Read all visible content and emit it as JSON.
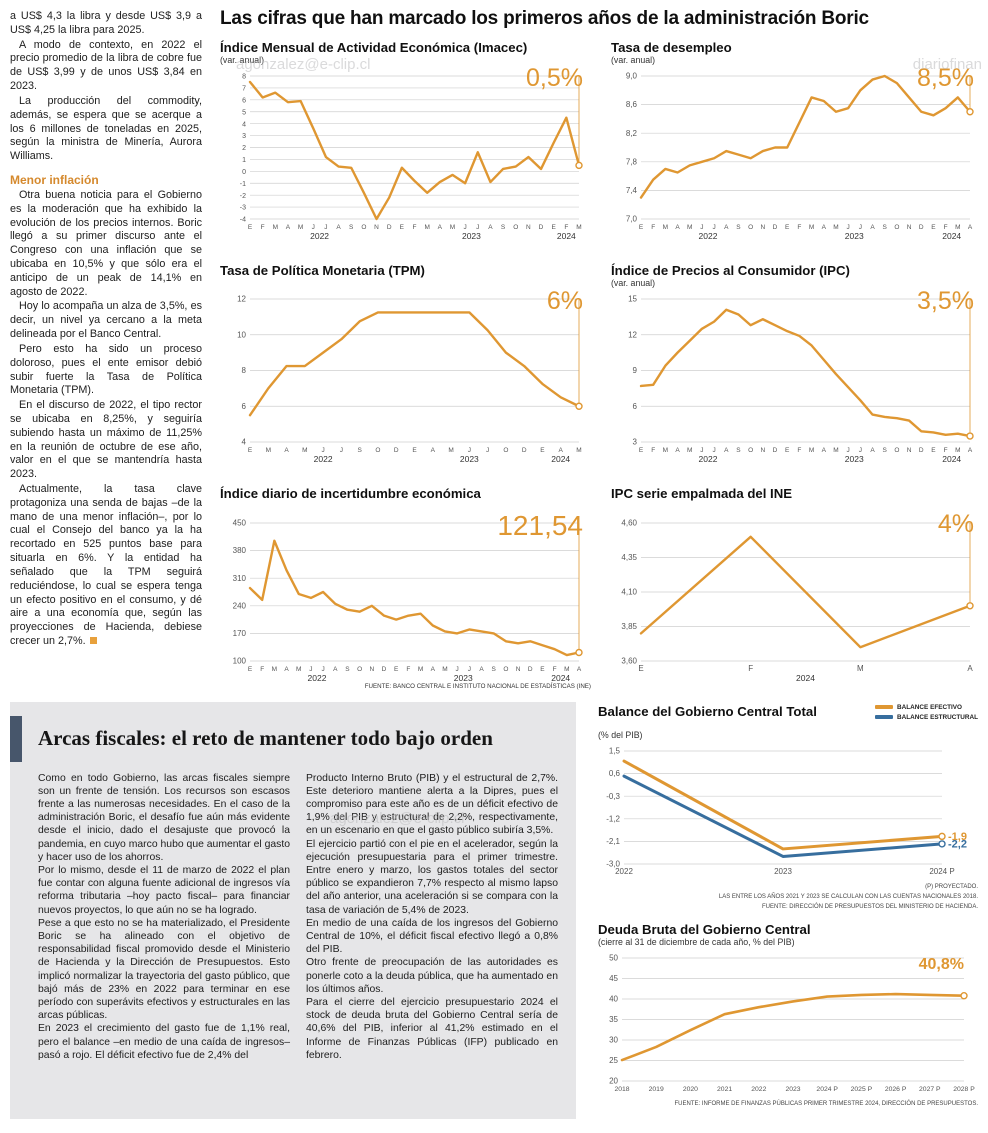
{
  "main_title": "Las cifras que han marcado los primeros años de la administración Boric",
  "watermarks": [
    "agonzalez@e-clip.cl",
    "diariofinan",
    "agonzalez@e-clip.cl"
  ],
  "colors": {
    "orange": "#DF9732",
    "blue": "#376E9E",
    "heading_orange": "#D5892D",
    "gray_box": "#E6E6E8",
    "headline_bar": "#47566B"
  },
  "left_col": {
    "p1": "a US$ 4,3 la libra y desde US$ 3,9 a US$ 4,25 la libra para 2025.",
    "p2": "A modo de contexto, en 2022 el precio promedio de la libra de cobre fue de US$ 3,99 y de unos US$ 3,84 en 2023.",
    "p3": "La producción del commodity, además, se espera que se acerque a los 6 millones de toneladas en 2025, según la ministra de Minería, Aurora Williams.",
    "heading": "Menor inflación",
    "p4": "Otra buena noticia para el Gobierno es la moderación que ha exhibido la evolución de los precios internos. Boric llegó a su primer discurso ante el Congreso con una inflación que se ubicaba en 10,5% y que sólo era el anticipo de un peak de 14,1% en agosto de 2022.",
    "p5": "Hoy lo acompaña un alza de 3,5%, es decir, un nivel ya cercano a la meta delineada por el Banco Central.",
    "p6": "Pero esto ha sido un proceso doloroso, pues el ente emisor debió subir fuerte la Tasa de Política Monetaria (TPM).",
    "p7": "En el discurso de 2022, el tipo rector se ubicaba en 8,25%, y seguiría subiendo hasta un máximo de 11,25% en la reunión de octubre de ese año, valor en el que se mantendría hasta 2023.",
    "p8": "Actualmente, la tasa clave protagoniza una senda de bajas –de la mano de una menor inflación–, por lo cual el Consejo del banco ya la ha recortado en 525 puntos base para situarla en 6%. Y la entidad ha señalado que la TPM seguirá reduciéndose, lo cual se espera tenga un efecto positivo en el consumo, y dé aire a una economía que, según las proyecciones de Hacienda, debiese crecer un 2,7%."
  },
  "bottom": {
    "headline": "Arcas fiscales: el reto de mantener todo bajo orden",
    "col1": {
      "p1": "Como en todo Gobierno, las arcas fiscales siempre son un frente de tensión. Los recursos son escasos frente a las numerosas necesidades. En el caso de la administración Boric, el desafío fue aún más evidente desde el inicio, dado el desajuste que provocó la pandemia, en cuyo marco hubo que aumentar el gasto y hacer uso de los ahorros.",
      "p2": "Por lo mismo, desde el 11 de marzo de 2022 el plan fue contar con alguna fuente adicional de ingresos vía reforma tributaria –hoy pacto fiscal– para financiar nuevos proyectos, lo que aún no se ha logrado.",
      "p3": "Pese a que esto no se ha materializado, el Presidente Boric se ha alineado con el objetivo de responsabilidad fiscal promovido desde el Ministerio de Hacienda y la Dirección de Presupuestos. Esto implicó normalizar la trayectoria del gasto público, que bajó más de 23% en 2022 para terminar en ese período con superávits efectivos y estructurales en las arcas públicas.",
      "p4": "En 2023 el crecimiento del gasto fue de 1,1% real, pero el balance –en medio de una caída de ingresos– pasó a rojo. El déficit efectivo fue de 2,4% del"
    },
    "col2": {
      "p1": "Producto Interno Bruto (PIB) y el estructural de 2,7%. Este deterioro mantiene alerta a la Dipres, pues el compromiso para este año es de un déficit efectivo de 1,9% del PIB y estructural de 2,2%, respectivamente, en un escenario en que el gasto público subiría 3,5%.",
      "p2": "El ejercicio partió con el pie en el acelerador, según la ejecución presupuestaria para el primer trimestre. Entre enero y marzo, los gastos totales del sector público se expandieron 7,7% respecto al mismo lapso del año anterior, una aceleración si se compara con la tasa de variación de 5,4% de 2023.",
      "p3": "En medio de una caída de los ingresos del Gobierno Central de 10%, el déficit fiscal efectivo llegó a 0,8% del PIB.",
      "p4": "Otro frente de preocupación de las autoridades es ponerle coto a la deuda pública, que ha aumentado en los últimos años.",
      "p5": "Para el cierre del ejercicio presupuestario 2024 el stock de deuda bruta del Gobierno Central sería de 40,6% del PIB, inferior al 41,2% estimado en el Informe de Finanzas Públicas (IFP) publicado en febrero."
    }
  },
  "chart_data": [
    {
      "type": "line",
      "title": "Índice Mensual de Actividad Económica (Imacec)",
      "subtitle": "(var. anual)",
      "big_label": "0,5%",
      "end_line": true,
      "ymin": -4,
      "ymax": 8,
      "tick_font": 7,
      "yticks": [
        [
          8,
          "8"
        ],
        [
          7,
          "7"
        ],
        [
          6,
          "6"
        ],
        [
          5,
          "5"
        ],
        [
          4,
          "4"
        ],
        [
          3,
          "3"
        ],
        [
          2,
          "2"
        ],
        [
          1,
          "1"
        ],
        [
          0,
          "0"
        ],
        [
          -1,
          "-1"
        ],
        [
          -2,
          "-2"
        ],
        [
          -3,
          "-3"
        ],
        [
          -4,
          "-4"
        ]
      ],
      "xlabels": [
        "E",
        "F",
        "M",
        "A",
        "M",
        "J",
        "J",
        "A",
        "S",
        "O",
        "N",
        "D",
        "E",
        "F",
        "M",
        "A",
        "M",
        "J",
        "J",
        "A",
        "S",
        "O",
        "N",
        "D",
        "E",
        "F",
        "M"
      ],
      "year_groups": [
        {
          "label": "2022",
          "start": 0,
          "end": 11
        },
        {
          "label": "2023",
          "start": 12,
          "end": 23
        },
        {
          "label": "2024",
          "start": 24,
          "end": 26
        }
      ],
      "series": [
        {
          "name": "Imacec",
          "color": "#DF9732",
          "values": [
            7.5,
            6.2,
            6.6,
            5.8,
            5.9,
            3.6,
            1.2,
            0.4,
            0.3,
            -1.8,
            -4,
            -2.2,
            0.3,
            -0.8,
            -1.8,
            -0.9,
            -0.3,
            -1,
            1.6,
            -0.9,
            0.2,
            0.4,
            1.2,
            0.2,
            2.4,
            4.5,
            0.5
          ]
        }
      ]
    },
    {
      "type": "line",
      "title": "Tasa de desempleo",
      "subtitle": "(var. anual)",
      "big_label": "8,5%",
      "end_line": true,
      "ymin": 7.0,
      "ymax": 9.0,
      "yticks": [
        [
          9.0,
          "9,0"
        ],
        [
          8.6,
          "8,6"
        ],
        [
          8.2,
          "8,2"
        ],
        [
          7.8,
          "7,8"
        ],
        [
          7.4,
          "7,4"
        ],
        [
          7.0,
          "7,0"
        ]
      ],
      "xlabels": [
        "E",
        "F",
        "M",
        "A",
        "M",
        "J",
        "J",
        "A",
        "S",
        "O",
        "N",
        "D",
        "E",
        "F",
        "M",
        "A",
        "M",
        "J",
        "J",
        "A",
        "S",
        "O",
        "N",
        "D",
        "E",
        "F",
        "M",
        "A"
      ],
      "year_groups": [
        {
          "label": "2022",
          "start": 0,
          "end": 11
        },
        {
          "label": "2023",
          "start": 12,
          "end": 23
        },
        {
          "label": "2024",
          "start": 24,
          "end": 27
        }
      ],
      "series": [
        {
          "name": "Tasa de desempleo",
          "color": "#DF9732",
          "values": [
            7.3,
            7.55,
            7.7,
            7.65,
            7.75,
            7.8,
            7.85,
            7.95,
            7.9,
            7.85,
            7.95,
            8.0,
            8.0,
            8.35,
            8.7,
            8.65,
            8.5,
            8.55,
            8.8,
            8.95,
            9.0,
            8.9,
            8.7,
            8.5,
            8.45,
            8.55,
            8.7,
            8.5
          ]
        }
      ]
    },
    {
      "type": "line",
      "title": "Tasa de Política Monetaria (TPM)",
      "subtitle": "",
      "big_label": "6%",
      "end_line": true,
      "ymin": 4,
      "ymax": 12,
      "yticks": [
        [
          12,
          "12"
        ],
        [
          10,
          "10"
        ],
        [
          8,
          "8"
        ],
        [
          6,
          "6"
        ],
        [
          4,
          "4"
        ]
      ],
      "xlabels": [
        "E",
        "M",
        "A",
        "M",
        "J",
        "J",
        "S",
        "O",
        "D",
        "E",
        "A",
        "M",
        "J",
        "J",
        "O",
        "D",
        "E",
        "A",
        "M"
      ],
      "year_groups": [
        {
          "label": "2022",
          "start": 0,
          "end": 8
        },
        {
          "label": "2023",
          "start": 9,
          "end": 15
        },
        {
          "label": "2024",
          "start": 16,
          "end": 18
        }
      ],
      "series": [
        {
          "name": "TPM",
          "color": "#DF9732",
          "values": [
            5.5,
            7.0,
            8.25,
            8.25,
            9.0,
            9.75,
            10.75,
            11.25,
            11.25,
            11.25,
            11.25,
            11.25,
            11.25,
            10.25,
            9.0,
            8.25,
            7.25,
            6.5,
            6.0
          ]
        }
      ]
    },
    {
      "type": "line",
      "title": "Índice de Precios al Consumidor (IPC)",
      "subtitle": "(var. anual)",
      "big_label": "3,5%",
      "end_line": true,
      "ymin": 3,
      "ymax": 15,
      "yticks": [
        [
          15,
          "15"
        ],
        [
          12,
          "12"
        ],
        [
          9,
          "9"
        ],
        [
          6,
          "6"
        ],
        [
          3,
          "3"
        ]
      ],
      "xlabels": [
        "E",
        "F",
        "M",
        "A",
        "M",
        "J",
        "J",
        "A",
        "S",
        "O",
        "N",
        "D",
        "E",
        "F",
        "M",
        "A",
        "M",
        "J",
        "J",
        "A",
        "S",
        "O",
        "N",
        "D",
        "E",
        "F",
        "M",
        "A"
      ],
      "year_groups": [
        {
          "label": "2022",
          "start": 0,
          "end": 11
        },
        {
          "label": "2023",
          "start": 12,
          "end": 23
        },
        {
          "label": "2024",
          "start": 24,
          "end": 27
        }
      ],
      "series": [
        {
          "name": "IPC",
          "color": "#DF9732",
          "values": [
            7.7,
            7.8,
            9.4,
            10.5,
            11.5,
            12.5,
            13.1,
            14.1,
            13.7,
            12.8,
            13.3,
            12.8,
            12.3,
            11.9,
            11.1,
            9.9,
            8.7,
            7.6,
            6.5,
            5.3,
            5.1,
            5.0,
            4.8,
            3.9,
            3.8,
            3.6,
            3.7,
            3.5
          ]
        }
      ]
    },
    {
      "type": "line",
      "title": "Índice diario de incertidumbre económica",
      "subtitle": "",
      "big_label": "121,54",
      "end_line": true,
      "source": "FUENTE: BANCO CENTRAL E INSTITUTO NACIONAL DE ESTADÍSTICAS (INE)",
      "ymin": 100,
      "ymax": 450,
      "yticks": [
        [
          450,
          "450"
        ],
        [
          380,
          "380"
        ],
        [
          310,
          "310"
        ],
        [
          240,
          "240"
        ],
        [
          170,
          "170"
        ],
        [
          100,
          "100"
        ]
      ],
      "xlabels": [
        "E",
        "F",
        "M",
        "A",
        "M",
        "J",
        "J",
        "A",
        "S",
        "O",
        "N",
        "D",
        "E",
        "F",
        "M",
        "A",
        "M",
        "J",
        "J",
        "A",
        "S",
        "O",
        "N",
        "D",
        "E",
        "F",
        "M",
        "A"
      ],
      "year_groups": [
        {
          "label": "2022",
          "start": 0,
          "end": 11
        },
        {
          "label": "2023",
          "start": 12,
          "end": 23
        },
        {
          "label": "2024",
          "start": 24,
          "end": 27
        }
      ],
      "series": [
        {
          "name": "Incertidumbre económica",
          "color": "#DF9732",
          "values": [
            285,
            255,
            405,
            330,
            270,
            260,
            275,
            245,
            230,
            225,
            240,
            215,
            205,
            215,
            220,
            190,
            175,
            170,
            180,
            175,
            170,
            150,
            145,
            150,
            140,
            130,
            115,
            121.54
          ]
        }
      ]
    },
    {
      "type": "line",
      "title": "IPC serie empalmada del INE",
      "subtitle": "",
      "big_label": "4%",
      "end_line": true,
      "ymin": 3.6,
      "ymax": 4.6,
      "yticks": [
        [
          4.6,
          "4,60"
        ],
        [
          4.35,
          "4,35"
        ],
        [
          4.1,
          "4,10"
        ],
        [
          3.85,
          "3,85"
        ],
        [
          3.6,
          "3,60"
        ]
      ],
      "x_font": 8,
      "xlabels": [
        "E",
        "F",
        "M",
        "A"
      ],
      "year_groups": [
        {
          "label": "2024",
          "start": 0,
          "end": 3
        }
      ],
      "series": [
        {
          "name": "IPC serie empalmada",
          "color": "#DF9732",
          "values": [
            3.8,
            4.5,
            3.7,
            4.0
          ]
        }
      ]
    },
    {
      "type": "line",
      "title": "Balance del Gobierno Central Total",
      "subtitle": "(% del PIB)",
      "ymin": -3.0,
      "ymax": 1.5,
      "yticks": [
        [
          1.5,
          "1,5"
        ],
        [
          0.6,
          "0,6"
        ],
        [
          -0.3,
          "-0,3"
        ],
        [
          -1.2,
          "-1,2"
        ],
        [
          -2.1,
          "-2,1"
        ],
        [
          -3.0,
          "-3,0"
        ]
      ],
      "x_font": 8,
      "xlabels": [
        "2022",
        "2023",
        "2024 P"
      ],
      "series": [
        {
          "name": "BALANCE EFECTIVO",
          "color": "#DF9732",
          "width": 3,
          "end_label": "-1,9",
          "values": [
            1.1,
            -2.4,
            -1.9
          ]
        },
        {
          "name": "BALANCE ESTRUCTURAL",
          "color": "#376E9E",
          "width": 3,
          "end_label": "-2,2",
          "values": [
            0.5,
            -2.7,
            -2.2
          ]
        }
      ],
      "source_lines": [
        "(P) PROYECTADO.",
        "LAS ENTRE LOS AÑOS 2021 Y 2023 SE CALCULAN  CON LAS CUENTAS NACIONALES 2018.",
        "FUENTE: DIRECCIÓN DE PRESUPUESTOS DEL MINISTERIO DE HACIENDA."
      ]
    },
    {
      "type": "line",
      "title": "Deuda Bruta del Gobierno Central",
      "subtitle": "(cierre al 31 de diciembre de cada año, % del PIB)",
      "big_label": "40,8%",
      "ymin": 20,
      "ymax": 50,
      "yticks": [
        [
          50,
          "50"
        ],
        [
          45,
          "45"
        ],
        [
          40,
          "40"
        ],
        [
          35,
          "35"
        ],
        [
          30,
          "30"
        ],
        [
          25,
          "25"
        ],
        [
          20,
          "20"
        ]
      ],
      "x_font": 6.8,
      "xlabels": [
        "2018",
        "2019",
        "2020",
        "2021",
        "2022",
        "2023",
        "2024 P",
        "2025 P",
        "2026 P",
        "2027 P",
        "2028 P"
      ],
      "series": [
        {
          "name": "Deuda bruta",
          "color": "#DF9732",
          "width": 2.6,
          "values": [
            25.1,
            28.3,
            32.4,
            36.3,
            38.0,
            39.4,
            40.6,
            41.0,
            41.2,
            41.0,
            40.8
          ]
        }
      ],
      "source_lines": [
        "FUENTE: INFORME DE FINANZAS PÚBLICAS PRIMER TRIMESTRE 2024, DIRECCIÓN DE PRESUPUESTOS."
      ]
    }
  ]
}
